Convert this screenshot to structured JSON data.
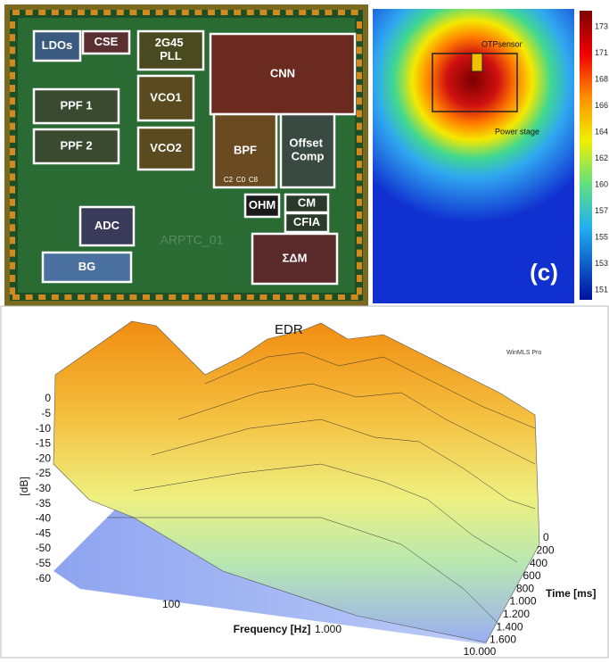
{
  "chip": {
    "blocks": [
      "LDOs",
      "CSE",
      "2G45 PLL",
      "CNN",
      "VCO1",
      "PPF 1",
      "PPF 2",
      "VCO2",
      "BPF",
      "Offset Comp",
      "OHM",
      "CM",
      "CFIA",
      "ADC",
      "BG",
      "ΣΔM"
    ],
    "small_labels": [
      "C2",
      "C0",
      "C8"
    ],
    "marking": "ARPTC_01"
  },
  "thermal": {
    "annotations": [
      "OTPsensor",
      "Power stage"
    ],
    "panel_label": "(c)",
    "colorbar": [
      "173",
      "171",
      "168",
      "166",
      "164",
      "162",
      "160",
      "157",
      "155",
      "153",
      "151"
    ]
  },
  "edr": {
    "title": "EDR",
    "watermark": "WinMLS Pro",
    "y_label": "[dB]",
    "yticks": [
      "0",
      "-5",
      "-10",
      "-15",
      "-20",
      "-25",
      "-30",
      "-35",
      "-40",
      "-45",
      "-50",
      "-55",
      "-60"
    ],
    "x_label": "Frequency [Hz]",
    "freq_ticks": [
      "100",
      "1.000",
      "10.000"
    ],
    "z_label": "Time [ms]",
    "time_ticks": [
      "0",
      "200",
      "400",
      "600",
      "800",
      "1.000",
      "1.200",
      "1.400",
      "1.600"
    ]
  }
}
